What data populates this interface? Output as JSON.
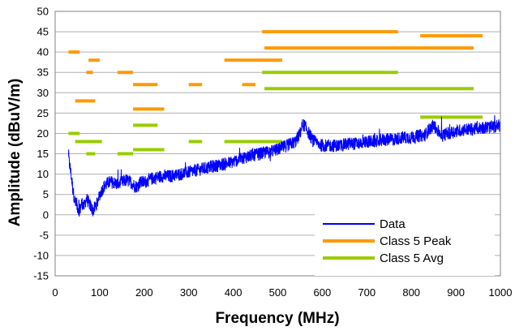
{
  "chart_data": {
    "type": "line",
    "title": "",
    "xlabel": "Frequency (MHz)",
    "ylabel": "Amplitude (dBuV/m)",
    "xlim": [
      0,
      1000
    ],
    "ylim": [
      -15,
      50
    ],
    "x_ticks": [
      "0",
      "100",
      "200",
      "300",
      "400",
      "500",
      "600",
      "700",
      "800",
      "900",
      "1000"
    ],
    "y_ticks": [
      "50",
      "45",
      "40",
      "35",
      "30",
      "25",
      "20",
      "15",
      "10",
      "5",
      "0",
      "-5",
      "-10",
      "-15"
    ],
    "grid": true,
    "legend_position": "bottom-right",
    "series": [
      {
        "name": "Data",
        "color": "#0000ff",
        "style": "noisy-line",
        "x": [
          30,
          33,
          37,
          40,
          45,
          50,
          55,
          60,
          65,
          70,
          75,
          80,
          85,
          90,
          95,
          100,
          110,
          120,
          130,
          140,
          150,
          160,
          170,
          180,
          185,
          190,
          200,
          210,
          220,
          240,
          260,
          280,
          300,
          320,
          340,
          360,
          380,
          400,
          420,
          440,
          460,
          480,
          500,
          520,
          540,
          550,
          555,
          560,
          570,
          580,
          600,
          620,
          640,
          660,
          680,
          700,
          720,
          740,
          760,
          780,
          800,
          820,
          830,
          840,
          850,
          860,
          870,
          880,
          900,
          920,
          940,
          960,
          980,
          1000
        ],
        "y": [
          14,
          12,
          9,
          6,
          3,
          2,
          1,
          3,
          2,
          4,
          3,
          2,
          1,
          2,
          3,
          5,
          7,
          8,
          8,
          7.5,
          8,
          8.5,
          8,
          7,
          7,
          8,
          8,
          8.5,
          9,
          9.5,
          9.5,
          10,
          10.5,
          11,
          11.5,
          12,
          12.5,
          13,
          14,
          14.5,
          15,
          15.5,
          16,
          17,
          18,
          20,
          22,
          22,
          20,
          18,
          17,
          17,
          17,
          17.5,
          17.5,
          18,
          18,
          18.5,
          18.5,
          19,
          19,
          19.5,
          19.5,
          21,
          22,
          20.5,
          19.5,
          20,
          20.5,
          21,
          21,
          21.5,
          21.5,
          22
        ],
        "noise": 1.6
      },
      {
        "name": "Class 5 Peak",
        "color": "#ff9900",
        "segments": [
          {
            "x": [
              30,
              55
            ],
            "y": 40
          },
          {
            "x": [
              75,
              100
            ],
            "y": 38
          },
          {
            "x": [
              70,
              85
            ],
            "y": 35
          },
          {
            "x": [
              45,
              90
            ],
            "y": 28
          },
          {
            "x": [
              140,
              175
            ],
            "y": 35
          },
          {
            "x": [
              175,
              230
            ],
            "y": 32
          },
          {
            "x": [
              175,
              245
            ],
            "y": 26
          },
          {
            "x": [
              300,
              330
            ],
            "y": 32
          },
          {
            "x": [
              380,
              510
            ],
            "y": 38
          },
          {
            "x": [
              420,
              450
            ],
            "y": 32
          },
          {
            "x": [
              465,
              770
            ],
            "y": 45
          },
          {
            "x": [
              470,
              940
            ],
            "y": 41
          },
          {
            "x": [
              820,
              960
            ],
            "y": 44
          }
        ]
      },
      {
        "name": "Class 5 Avg",
        "color": "#99cc00",
        "segments": [
          {
            "x": [
              30,
              55
            ],
            "y": 20
          },
          {
            "x": [
              45,
              105
            ],
            "y": 18
          },
          {
            "x": [
              70,
              90
            ],
            "y": 15
          },
          {
            "x": [
              140,
              175
            ],
            "y": 15
          },
          {
            "x": [
              175,
              230
            ],
            "y": 22
          },
          {
            "x": [
              175,
              245
            ],
            "y": 16
          },
          {
            "x": [
              300,
              330
            ],
            "y": 18
          },
          {
            "x": [
              380,
              510
            ],
            "y": 18
          },
          {
            "x": [
              465,
              770
            ],
            "y": 35
          },
          {
            "x": [
              470,
              940
            ],
            "y": 31
          },
          {
            "x": [
              820,
              960
            ],
            "y": 24
          }
        ]
      }
    ]
  }
}
